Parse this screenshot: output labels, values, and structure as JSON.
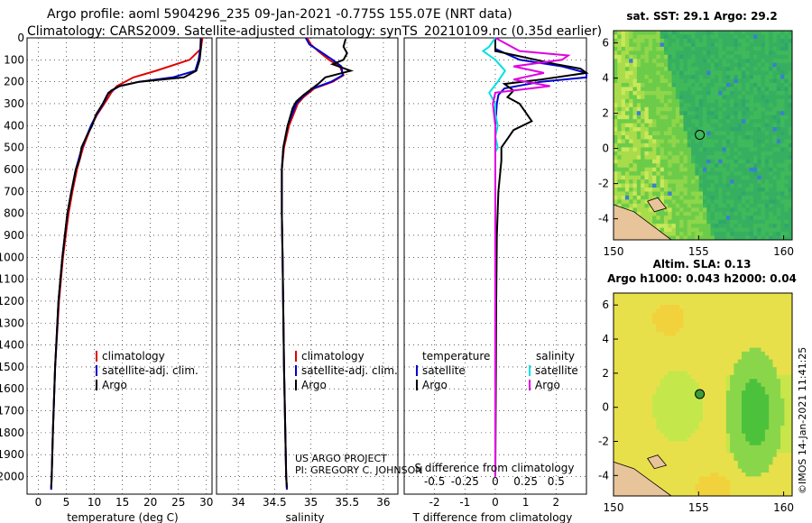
{
  "header": {
    "title_line1": "Argo profile: aoml 5904296_235 09-Jan-2021 -0.775S 155.07E (NRT data)",
    "title_line2": "Climatology: CARS2009. Satellite-adjusted climatology: synTS_20210109.nc (0.35d earlier)"
  },
  "colors": {
    "climatology": "#e00000",
    "satellite": "#0000d0",
    "argo": "#000000",
    "salinity_satellite": "#00e0e0",
    "salinity_argo": "#e000e0"
  },
  "credits": {
    "line1": "US ARGO PROJECT",
    "line2": "PI: GREGORY C. JOHNSON"
  },
  "stamp": "©IMOS 14-Jan-2021 11:41:25",
  "chart_data": [
    {
      "type": "line",
      "id": "temperature",
      "xlabel": "temperature (deg C)",
      "ylabel": "",
      "xlim": [
        -2,
        31
      ],
      "ylim": [
        2080,
        0
      ],
      "xticks": [
        0,
        5,
        10,
        15,
        20,
        25,
        30
      ],
      "yticks": [
        0,
        100,
        200,
        300,
        400,
        500,
        600,
        700,
        800,
        900,
        1000,
        1100,
        1200,
        1300,
        1400,
        1500,
        1600,
        1700,
        1800,
        1900,
        2000
      ],
      "legend": [
        "climatology",
        "satellite-adj. clim.",
        "Argo"
      ],
      "series": [
        {
          "name": "climatology",
          "color": "#e00000",
          "y": [
            0,
            50,
            100,
            150,
            180,
            220,
            250,
            280,
            300,
            350,
            400,
            500,
            600,
            700,
            800,
            1000,
            1200,
            1500,
            1800,
            2000,
            2060
          ],
          "x": [
            29.3,
            29.0,
            27.0,
            21.0,
            17.0,
            14.0,
            13.0,
            12.3,
            11.8,
            10.5,
            9.5,
            8.0,
            6.9,
            6.1,
            5.4,
            4.4,
            3.7,
            3.0,
            2.6,
            2.4,
            2.3
          ]
        },
        {
          "name": "satellite-adj. clim.",
          "color": "#0000d0",
          "y": [
            0,
            50,
            100,
            150,
            180,
            200,
            220,
            250,
            280,
            300,
            350,
            400,
            500,
            600,
            700,
            800,
            1000,
            1200,
            1500,
            1800,
            2000,
            2060
          ],
          "x": [
            29.0,
            28.9,
            28.6,
            28.0,
            24.0,
            18.0,
            14.5,
            12.5,
            12.0,
            11.6,
            10.4,
            9.4,
            7.8,
            6.7,
            5.9,
            5.2,
            4.3,
            3.6,
            3.0,
            2.6,
            2.4,
            2.3
          ]
        },
        {
          "name": "Argo",
          "color": "#000000",
          "y": [
            5,
            50,
            100,
            150,
            180,
            200,
            220,
            240,
            260,
            300,
            350,
            400,
            450,
            500,
            550,
            600,
            700,
            800,
            1000,
            1200,
            1500,
            1800,
            2000,
            2050
          ],
          "x": [
            29.0,
            29.0,
            28.8,
            28.2,
            26.0,
            18.0,
            14.5,
            13.0,
            12.3,
            11.5,
            10.3,
            9.6,
            8.6,
            7.7,
            7.4,
            6.7,
            5.9,
            5.2,
            4.3,
            3.6,
            3.0,
            2.6,
            2.4,
            2.3
          ]
        }
      ]
    },
    {
      "type": "line",
      "id": "salinity",
      "xlabel": "salinity",
      "ylabel": "",
      "xlim": [
        33.7,
        36.2
      ],
      "ylim": [
        2080,
        0
      ],
      "xticks": [
        34,
        34.5,
        35,
        35.5,
        36
      ],
      "legend": [
        "climatology",
        "satellite-adj. clim.",
        "Argo"
      ],
      "series": [
        {
          "name": "climatology",
          "color": "#e00000",
          "y": [
            0,
            30,
            60,
            100,
            130,
            170,
            200,
            230,
            270,
            300,
            400,
            500,
            600,
            800,
            1000,
            1500,
            2000,
            2060
          ],
          "x": [
            34.95,
            35.0,
            35.1,
            35.25,
            35.4,
            35.45,
            35.3,
            35.05,
            34.9,
            34.82,
            34.7,
            34.63,
            34.6,
            34.6,
            34.61,
            34.63,
            34.66,
            34.67
          ]
        },
        {
          "name": "satellite-adj. clim.",
          "color": "#0000d0",
          "y": [
            0,
            30,
            60,
            100,
            130,
            170,
            200,
            230,
            270,
            300,
            400,
            500,
            600,
            800,
            1000,
            1500,
            2000,
            2060
          ],
          "x": [
            34.93,
            34.98,
            35.12,
            35.3,
            35.42,
            35.44,
            35.28,
            35.03,
            34.88,
            34.8,
            34.68,
            34.62,
            34.6,
            34.6,
            34.61,
            34.63,
            34.66,
            34.67
          ]
        },
        {
          "name": "Argo",
          "color": "#000000",
          "y": [
            5,
            40,
            70,
            100,
            120,
            150,
            180,
            210,
            240,
            260,
            290,
            320,
            400,
            500,
            600,
            800,
            1000,
            1500,
            2000,
            2050
          ],
          "x": [
            35.48,
            35.45,
            35.5,
            35.45,
            35.3,
            35.55,
            35.2,
            35.1,
            34.98,
            34.9,
            34.8,
            34.75,
            34.68,
            34.62,
            34.6,
            34.6,
            34.61,
            34.63,
            34.66,
            34.67
          ]
        }
      ]
    },
    {
      "type": "line",
      "id": "differences",
      "xlabel": "T difference from climatology",
      "xlabel_secondary": "S difference from climatology",
      "xlim": [
        -3,
        3
      ],
      "ylim": [
        2080,
        0
      ],
      "xticks": [
        -2,
        -1,
        0,
        1,
        2
      ],
      "xticks_secondary": [
        -0.5,
        -0.25,
        0,
        0.25,
        0.5
      ],
      "legend_temperature": [
        "temperature",
        "satellite",
        "Argo"
      ],
      "legend_salinity": [
        "salinity",
        "satellite",
        "Argo"
      ],
      "series": [
        {
          "name": "T satellite",
          "color": "#0000d0",
          "y": [
            0,
            50,
            100,
            130,
            160,
            180,
            200,
            230,
            260,
            300,
            400,
            600,
            1000,
            1500,
            2000
          ],
          "x": [
            0.0,
            0.0,
            0.8,
            2.2,
            3.0,
            3.0,
            1.5,
            0.3,
            0.1,
            0.05,
            0.0,
            0.0,
            0.0,
            0.0,
            0.0
          ]
        },
        {
          "name": "T Argo",
          "color": "#000000",
          "y": [
            0,
            60,
            90,
            120,
            140,
            160,
            190,
            210,
            240,
            270,
            300,
            340,
            380,
            420,
            460,
            500,
            560,
            700,
            900,
            1200,
            1500,
            2000
          ],
          "x": [
            0.0,
            0.0,
            1.0,
            2.0,
            2.8,
            3.0,
            1.5,
            0.3,
            0.6,
            0.4,
            0.8,
            1.0,
            1.2,
            0.6,
            0.4,
            0.2,
            0.2,
            0.1,
            0.05,
            0.03,
            0.02,
            0.0
          ]
        },
        {
          "name": "S satellite",
          "color": "#00e0e0",
          "y": [
            0,
            40,
            60,
            80,
            100,
            150,
            200,
            250,
            300,
            350,
            400,
            450,
            500,
            520,
            600,
            800,
            1000,
            1500,
            2000
          ],
          "x": [
            0.0,
            -0.05,
            -0.1,
            -0.05,
            0.0,
            0.08,
            0.02,
            -0.05,
            0.0,
            0.0,
            0.02,
            0.0,
            0.02,
            0.0,
            0.0,
            0.0,
            0.0,
            0.0,
            0.0
          ]
        },
        {
          "name": "S Argo",
          "color": "#e000e0",
          "y": [
            0,
            60,
            80,
            100,
            130,
            160,
            190,
            220,
            250,
            300,
            400,
            500,
            700,
            1000,
            1500,
            2000
          ],
          "x": [
            0.0,
            0.2,
            0.6,
            0.55,
            0.15,
            0.4,
            0.15,
            0.45,
            0.0,
            -0.02,
            0.0,
            0.0,
            0.0,
            0.0,
            0.0,
            0.0
          ]
        }
      ]
    },
    {
      "type": "heatmap",
      "id": "sst_map",
      "title": "sat. SST: 29.1 Argo: 29.2",
      "xticks": [
        150,
        155,
        160
      ],
      "yticks": [
        6,
        4,
        2,
        0,
        -2,
        -4
      ],
      "xlim": [
        150,
        160.5
      ],
      "ylim": [
        -5.2,
        6.7
      ],
      "marker": {
        "lon": 155.07,
        "lat": 0.775
      }
    },
    {
      "type": "heatmap",
      "id": "sla_map",
      "title": "Altim. SLA: 0.13",
      "subtitle": "Argo h1000: 0.043 h2000: 0.04",
      "xticks": [
        150,
        155,
        160
      ],
      "yticks": [
        6,
        4,
        2,
        0,
        -2,
        -4
      ],
      "xlim": [
        150,
        160.5
      ],
      "ylim": [
        -5.2,
        6.7
      ],
      "marker": {
        "lon": 155.07,
        "lat": 0.775
      }
    }
  ]
}
